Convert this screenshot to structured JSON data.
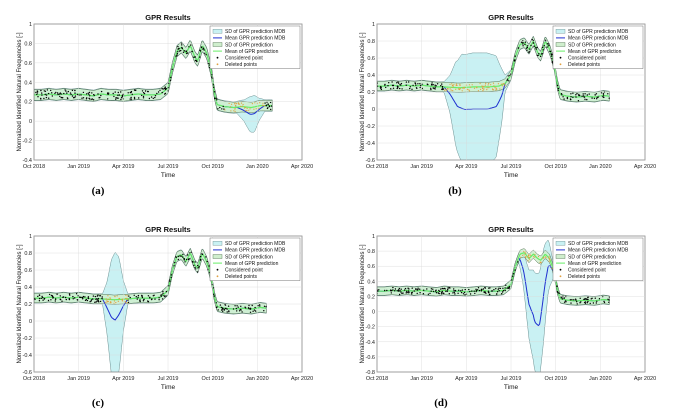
{
  "labels": {
    "a": "(a)",
    "b": "(b)",
    "c": "(c)",
    "d": "(d)"
  },
  "chart_data": [
    {
      "id": "a",
      "type": "line",
      "title": "GPR Results",
      "xlabel": "Time",
      "ylabel": "Normalized Identified Natural Frequencies [-]",
      "xticks": [
        "Oct 2018",
        "Jan 2019",
        "Apr 2019",
        "Jul 2019",
        "Oct 2019",
        "Jan 2020",
        "Apr 2020"
      ],
      "ylim": [
        -0.4,
        1.0
      ],
      "yticks": [
        "-0.4",
        "-0.2",
        "0",
        "0.2",
        "0.4",
        "0.6",
        "0.8",
        "1"
      ],
      "legend_position": "top-right",
      "legend": [
        "SD of GPR prediction MDB",
        "Mean GPR prediction MDB",
        "SD of GPR prediction",
        "Mean of GPR prediction",
        "Considered point",
        "Deleted points"
      ],
      "colors": {
        "sd_mdb": "#c9f1f3",
        "mean_mdb": "#1f2fd0",
        "sd": "#cfeecd",
        "mean": "#66ee66",
        "considered": "#000000",
        "deleted": "#e0a040"
      },
      "gap": {
        "from": 12.8,
        "to": 15.5
      },
      "mdb_band": [
        [
          0,
          0.06
        ],
        [
          12.8,
          0.06
        ],
        [
          13.6,
          0.06
        ],
        [
          14.1,
          0.11
        ],
        [
          14.5,
          0.18
        ],
        [
          14.8,
          0.19
        ],
        [
          15.1,
          0.12
        ],
        [
          15.5,
          0.06
        ],
        [
          16.0,
          0.06
        ]
      ],
      "mdb_mean_dev": [
        [
          12.8,
          0.0
        ],
        [
          13.6,
          0.0
        ],
        [
          14.1,
          -0.04
        ],
        [
          14.5,
          -0.07
        ],
        [
          14.8,
          -0.07
        ],
        [
          15.1,
          -0.04
        ],
        [
          15.5,
          0.0
        ]
      ],
      "sd_green": 0.055,
      "mean_curve": [
        [
          0,
          0.27
        ],
        [
          0.5,
          0.27
        ],
        [
          1.0,
          0.28
        ],
        [
          1.5,
          0.27
        ],
        [
          2.0,
          0.28
        ],
        [
          2.5,
          0.27
        ],
        [
          3.0,
          0.28
        ],
        [
          3.5,
          0.27
        ],
        [
          4.0,
          0.26
        ],
        [
          4.5,
          0.28
        ],
        [
          5.0,
          0.27
        ],
        [
          5.5,
          0.27
        ],
        [
          6.0,
          0.26
        ],
        [
          6.5,
          0.27
        ],
        [
          7.0,
          0.28
        ],
        [
          7.5,
          0.27
        ],
        [
          8.0,
          0.27
        ],
        [
          8.5,
          0.28
        ],
        [
          9.0,
          0.34
        ],
        [
          9.3,
          0.55
        ],
        [
          9.6,
          0.72
        ],
        [
          9.9,
          0.76
        ],
        [
          10.2,
          0.7
        ],
        [
          10.5,
          0.78
        ],
        [
          10.8,
          0.66
        ],
        [
          11.0,
          0.62
        ],
        [
          11.3,
          0.78
        ],
        [
          11.6,
          0.7
        ],
        [
          11.9,
          0.52
        ],
        [
          12.1,
          0.3
        ],
        [
          12.3,
          0.17
        ],
        [
          12.8,
          0.15
        ],
        [
          13.4,
          0.14
        ],
        [
          14.0,
          0.15
        ],
        [
          14.6,
          0.14
        ],
        [
          15.2,
          0.16
        ],
        [
          16.0,
          0.16
        ]
      ],
      "x_end": 16.0
    },
    {
      "id": "b",
      "type": "line",
      "title": "GPR Results",
      "xlabel": "Time",
      "ylabel": "Normalized Identified Natural Frequencies [-]",
      "xticks": [
        "Oct 2018",
        "Jan 2019",
        "Apr 2019",
        "Jul 2019",
        "Oct 2019",
        "Jan 2020",
        "Apr 2020"
      ],
      "ylim": [
        -0.6,
        1.0
      ],
      "yticks": [
        "-0.6",
        "-0.4",
        "-0.2",
        "0",
        "0.2",
        "0.4",
        "0.6",
        "0.8",
        "1"
      ],
      "legend_position": "top-right",
      "legend": [
        "SD of GPR prediction MDB",
        "Mean GPR prediction MDB",
        "SD of GPR prediction",
        "Mean of GPR prediction",
        "Considered point",
        "Deleted points"
      ],
      "colors": {
        "sd_mdb": "#c9f1f3",
        "mean_mdb": "#1f2fd0",
        "sd": "#cfeecd",
        "mean": "#66ee66",
        "considered": "#000000",
        "deleted": "#e0a040"
      },
      "gap": {
        "from": 4.5,
        "to": 8.6
      },
      "mdb_band": [
        [
          0,
          0.06
        ],
        [
          4.5,
          0.06
        ],
        [
          4.9,
          0.22
        ],
        [
          5.3,
          0.5
        ],
        [
          5.7,
          0.64
        ],
        [
          6.4,
          0.66
        ],
        [
          7.4,
          0.66
        ],
        [
          8.0,
          0.6
        ],
        [
          8.4,
          0.3
        ],
        [
          8.6,
          0.1
        ],
        [
          9.0,
          0.06
        ],
        [
          16.0,
          0.06
        ]
      ],
      "mdb_mean_dev": [
        [
          4.5,
          0.0
        ],
        [
          4.9,
          -0.08
        ],
        [
          5.4,
          -0.22
        ],
        [
          5.9,
          -0.26
        ],
        [
          7.4,
          -0.26
        ],
        [
          8.0,
          -0.24
        ],
        [
          8.4,
          -0.12
        ],
        [
          8.6,
          0.0
        ]
      ],
      "sd_green": 0.055,
      "mean_curve": [
        [
          0,
          0.27
        ],
        [
          0.5,
          0.27
        ],
        [
          1.0,
          0.28
        ],
        [
          1.5,
          0.27
        ],
        [
          2.0,
          0.28
        ],
        [
          2.5,
          0.27
        ],
        [
          3.0,
          0.28
        ],
        [
          3.5,
          0.27
        ],
        [
          4.0,
          0.26
        ],
        [
          4.5,
          0.26
        ],
        [
          5.5,
          0.25
        ],
        [
          6.5,
          0.26
        ],
        [
          7.5,
          0.26
        ],
        [
          8.2,
          0.27
        ],
        [
          8.6,
          0.3
        ],
        [
          9.0,
          0.4
        ],
        [
          9.3,
          0.62
        ],
        [
          9.6,
          0.76
        ],
        [
          9.9,
          0.78
        ],
        [
          10.2,
          0.7
        ],
        [
          10.5,
          0.8
        ],
        [
          10.8,
          0.66
        ],
        [
          11.0,
          0.62
        ],
        [
          11.3,
          0.8
        ],
        [
          11.6,
          0.7
        ],
        [
          11.9,
          0.52
        ],
        [
          12.1,
          0.3
        ],
        [
          12.3,
          0.17
        ],
        [
          12.8,
          0.15
        ],
        [
          13.4,
          0.14
        ],
        [
          14.0,
          0.15
        ],
        [
          14.6,
          0.14
        ],
        [
          15.2,
          0.16
        ],
        [
          15.6,
          0.15
        ]
      ],
      "x_end": 15.6
    },
    {
      "id": "c",
      "type": "line",
      "title": "GPR Results",
      "xlabel": "Time",
      "ylabel": "Normalized Identified Natural Frequencies [-]",
      "xticks": [
        "Oct 2018",
        "Jan 2019",
        "Apr 2019",
        "Jul 2019",
        "Oct 2019",
        "Jan 2020",
        "Apr 2020"
      ],
      "ylim": [
        -0.6,
        1.0
      ],
      "yticks": [
        "-0.6",
        "-0.4",
        "-0.2",
        "0",
        "0.2",
        "0.4",
        "0.6",
        "0.8",
        "1"
      ],
      "legend_position": "top-right",
      "legend": [
        "SD of GPR prediction MDB",
        "Mean GPR prediction MDB",
        "SD of GPR prediction",
        "Mean of GPR prediction",
        "Considered point",
        "Deleted points"
      ],
      "colors": {
        "sd_mdb": "#c9f1f3",
        "mean_mdb": "#1f2fd0",
        "sd": "#cfeecd",
        "mean": "#66ee66",
        "considered": "#000000",
        "deleted": "#e0a040"
      },
      "gap": {
        "from": 4.6,
        "to": 6.3
      },
      "mdb_band": [
        [
          0,
          0.06
        ],
        [
          4.6,
          0.06
        ],
        [
          4.9,
          0.3
        ],
        [
          5.2,
          0.68
        ],
        [
          5.45,
          0.8
        ],
        [
          5.7,
          0.68
        ],
        [
          6.0,
          0.3
        ],
        [
          6.3,
          0.06
        ],
        [
          16.0,
          0.06
        ]
      ],
      "mdb_mean_dev": [
        [
          4.6,
          0.0
        ],
        [
          4.9,
          -0.1
        ],
        [
          5.2,
          -0.21
        ],
        [
          5.45,
          -0.24
        ],
        [
          5.7,
          -0.18
        ],
        [
          6.0,
          -0.08
        ],
        [
          6.3,
          0.0
        ]
      ],
      "sd_green": 0.055,
      "mean_curve": [
        [
          0,
          0.27
        ],
        [
          0.5,
          0.27
        ],
        [
          1.0,
          0.28
        ],
        [
          1.5,
          0.27
        ],
        [
          2.0,
          0.28
        ],
        [
          2.5,
          0.27
        ],
        [
          3.0,
          0.28
        ],
        [
          3.5,
          0.27
        ],
        [
          4.0,
          0.26
        ],
        [
          4.6,
          0.26
        ],
        [
          5.4,
          0.25
        ],
        [
          6.3,
          0.26
        ],
        [
          7.0,
          0.27
        ],
        [
          8.0,
          0.27
        ],
        [
          8.5,
          0.28
        ],
        [
          9.0,
          0.36
        ],
        [
          9.3,
          0.6
        ],
        [
          9.6,
          0.76
        ],
        [
          9.9,
          0.78
        ],
        [
          10.2,
          0.7
        ],
        [
          10.5,
          0.8
        ],
        [
          10.8,
          0.66
        ],
        [
          11.0,
          0.62
        ],
        [
          11.3,
          0.8
        ],
        [
          11.6,
          0.7
        ],
        [
          11.9,
          0.52
        ],
        [
          12.1,
          0.3
        ],
        [
          12.3,
          0.17
        ],
        [
          12.8,
          0.15
        ],
        [
          13.4,
          0.14
        ],
        [
          14.0,
          0.15
        ],
        [
          14.6,
          0.14
        ],
        [
          15.2,
          0.16
        ],
        [
          15.6,
          0.15
        ]
      ],
      "x_end": 15.6
    },
    {
      "id": "d",
      "type": "line",
      "title": "GPR Results",
      "xlabel": "Time",
      "ylabel": "Normalized Identified Natural Frequencies [-]",
      "xticks": [
        "Oct 2018",
        "Jan 2019",
        "Apr 2019",
        "Jul 2019",
        "Oct 2019",
        "Jan 2020",
        "Apr 2020"
      ],
      "ylim": [
        -0.8,
        1.0
      ],
      "yticks": [
        "-0.8",
        "-0.6",
        "-0.4",
        "-0.2",
        "0",
        "0.2",
        "0.4",
        "0.6",
        "0.8",
        "1"
      ],
      "legend_position": "top-right",
      "legend": [
        "SD of GPR prediction MDB",
        "Mean GPR prediction MDB",
        "SD of GPR prediction",
        "Mean of GPR prediction",
        "Considered point",
        "Deleted points"
      ],
      "colors": {
        "sd_mdb": "#c9f1f3",
        "mean_mdb": "#1f2fd0",
        "sd": "#cfeecd",
        "mean": "#66ee66",
        "considered": "#000000",
        "deleted": "#e0a040"
      },
      "gap": {
        "from": 9.5,
        "to": 11.9
      },
      "mdb_band": [
        [
          0,
          0.06
        ],
        [
          9.5,
          0.06
        ],
        [
          9.8,
          0.2
        ],
        [
          10.2,
          0.45
        ],
        [
          10.6,
          0.65
        ],
        [
          10.9,
          0.7
        ],
        [
          11.2,
          0.6
        ],
        [
          11.5,
          0.35
        ],
        [
          11.9,
          0.06
        ],
        [
          16.0,
          0.06
        ]
      ],
      "mdb_mean_dev": [
        [
          9.5,
          0.0
        ],
        [
          9.8,
          -0.2
        ],
        [
          10.2,
          -0.6
        ],
        [
          10.6,
          -0.88
        ],
        [
          10.9,
          -0.88
        ],
        [
          11.2,
          -0.5
        ],
        [
          11.5,
          -0.12
        ],
        [
          11.9,
          0.0
        ]
      ],
      "sd_green": 0.055,
      "mean_curve": [
        [
          0,
          0.27
        ],
        [
          0.5,
          0.27
        ],
        [
          1.0,
          0.28
        ],
        [
          1.5,
          0.27
        ],
        [
          2.0,
          0.28
        ],
        [
          2.5,
          0.27
        ],
        [
          3.0,
          0.28
        ],
        [
          3.5,
          0.27
        ],
        [
          4.0,
          0.26
        ],
        [
          4.5,
          0.28
        ],
        [
          5.0,
          0.27
        ],
        [
          5.5,
          0.27
        ],
        [
          6.0,
          0.26
        ],
        [
          6.5,
          0.27
        ],
        [
          7.0,
          0.28
        ],
        [
          7.5,
          0.27
        ],
        [
          8.0,
          0.27
        ],
        [
          8.5,
          0.28
        ],
        [
          9.0,
          0.36
        ],
        [
          9.3,
          0.6
        ],
        [
          9.6,
          0.76
        ],
        [
          9.9,
          0.78
        ],
        [
          10.2,
          0.7
        ],
        [
          10.5,
          0.76
        ],
        [
          10.8,
          0.7
        ],
        [
          11.0,
          0.68
        ],
        [
          11.3,
          0.76
        ],
        [
          11.6,
          0.7
        ],
        [
          11.9,
          0.52
        ],
        [
          12.1,
          0.3
        ],
        [
          12.3,
          0.17
        ],
        [
          12.8,
          0.15
        ],
        [
          13.4,
          0.14
        ],
        [
          14.0,
          0.15
        ],
        [
          14.6,
          0.14
        ],
        [
          15.2,
          0.16
        ],
        [
          15.6,
          0.15
        ]
      ],
      "x_end": 15.6
    }
  ]
}
